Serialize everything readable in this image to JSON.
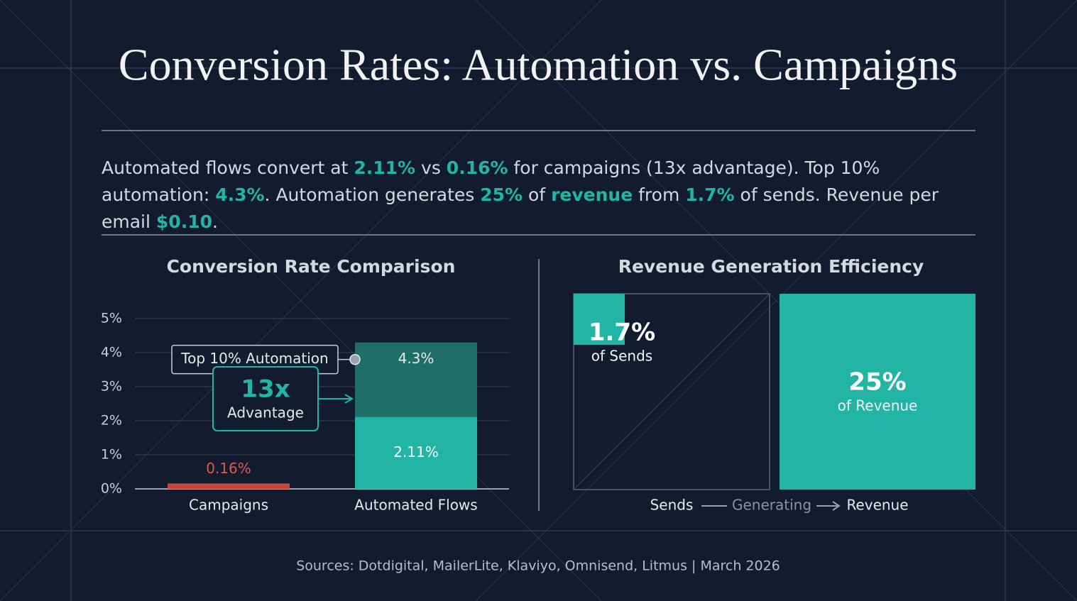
{
  "title": "Conversion Rates: Automation vs. Campaigns",
  "summary": [
    {
      "text": "Automated flows convert at ",
      "highlight": false
    },
    {
      "text": "2.11%",
      "highlight": true
    },
    {
      "text": " vs ",
      "highlight": false
    },
    {
      "text": "0.16%",
      "highlight": true
    },
    {
      "text": " for campaigns (13x advantage). Top 10% automation: ",
      "highlight": false
    },
    {
      "text": "4.3%",
      "highlight": true
    },
    {
      "text": ". Automation generates ",
      "highlight": false
    },
    {
      "text": "25%",
      "highlight": true
    },
    {
      "text": " of ",
      "highlight": false
    },
    {
      "text": "revenue",
      "highlight": true
    },
    {
      "text": " from ",
      "highlight": false
    },
    {
      "text": "1.7%",
      "highlight": true
    },
    {
      "text": " of sends. Revenue per email ",
      "highlight": false
    },
    {
      "text": "$0.10",
      "highlight": true
    },
    {
      "text": ".",
      "highlight": false
    }
  ],
  "source": "Sources: Dotdigital, MailerLite, Klaviyo, Omnisend, Litmus | March 2026",
  "chart_data": [
    {
      "type": "bar",
      "title": "Conversion Rate Comparison",
      "categories": [
        "Campaigns",
        "Automated Flows"
      ],
      "values": [
        0.16,
        2.11
      ],
      "value_labels": [
        "0.16%",
        "2.11%"
      ],
      "colors": [
        "#c9443d",
        "#22b5a5"
      ],
      "label_colors": [
        "#e0574f",
        "#ffffff"
      ],
      "benchmark": {
        "name": "Top 10% Automation",
        "value": 4.3,
        "value_label": "4.3%",
        "color": "#1f6f68"
      },
      "annotation": {
        "title": "13x",
        "text": "Advantage"
      },
      "ylim": [
        0,
        5.5
      ],
      "yticks": [
        {
          "value": 0,
          "label": "0%"
        },
        {
          "value": 1,
          "label": "1%"
        },
        {
          "value": 2,
          "label": "2%"
        },
        {
          "value": 3,
          "label": "3%"
        },
        {
          "value": 4,
          "label": "4%"
        },
        {
          "value": 5,
          "label": "5%"
        }
      ],
      "grid": true
    },
    {
      "type": "area",
      "title": "Revenue Generation Efficiency",
      "categories": [
        "Sends",
        "Revenue"
      ],
      "values": [
        1.7,
        25
      ],
      "value_labels": [
        "1.7%",
        "25%"
      ],
      "sublabels": [
        "of Sends",
        "of Revenue"
      ],
      "color": "#22b5a5",
      "connector": "Generating"
    }
  ]
}
